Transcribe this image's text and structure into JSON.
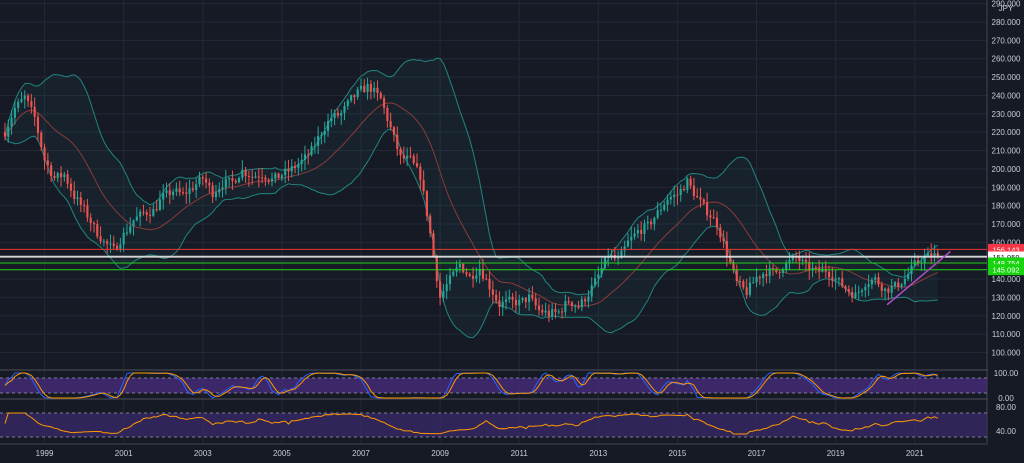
{
  "chart_data": [
    {
      "type": "candlestick",
      "currency_label": "JPY",
      "ylim": [
        91,
        292
      ],
      "y_ticks": [
        "290.000",
        "280.000",
        "270.000",
        "260.000",
        "250.000",
        "240.000",
        "230.000",
        "220.000",
        "210.000",
        "200.000",
        "190.000",
        "180.000",
        "170.000",
        "160.000",
        "150.000",
        "140.000",
        "130.000",
        "120.000",
        "110.000",
        "100.000"
      ],
      "x_labels": [
        "1999",
        "2001",
        "2003",
        "2005",
        "2007",
        "2009",
        "2011",
        "2013",
        "2015",
        "2017",
        "2019",
        "2021"
      ],
      "x_label_years": [
        1999,
        2001,
        2003,
        2005,
        2007,
        2009,
        2011,
        2013,
        2015,
        2017,
        2019,
        2021
      ],
      "xlim": [
        1998.0,
        2022.7
      ],
      "anchors": [
        [
          1998.0,
          220
        ],
        [
          1998.25,
          233
        ],
        [
          1998.5,
          239
        ],
        [
          1998.75,
          228
        ],
        [
          1999.0,
          205
        ],
        [
          1999.25,
          195
        ],
        [
          1999.5,
          197
        ],
        [
          1999.75,
          185
        ],
        [
          2000.0,
          178
        ],
        [
          2000.25,
          168
        ],
        [
          2000.5,
          160
        ],
        [
          2000.75,
          156
        ],
        [
          2001.0,
          164
        ],
        [
          2001.25,
          172
        ],
        [
          2001.5,
          176
        ],
        [
          2001.75,
          177
        ],
        [
          2002.0,
          185
        ],
        [
          2002.25,
          188
        ],
        [
          2002.5,
          186
        ],
        [
          2002.75,
          190
        ],
        [
          2003.0,
          195
        ],
        [
          2003.25,
          187
        ],
        [
          2003.5,
          192
        ],
        [
          2003.75,
          193
        ],
        [
          2004.0,
          199
        ],
        [
          2004.25,
          196
        ],
        [
          2004.5,
          197
        ],
        [
          2004.75,
          194
        ],
        [
          2005.0,
          197
        ],
        [
          2005.25,
          200
        ],
        [
          2005.5,
          204
        ],
        [
          2005.75,
          210
        ],
        [
          2006.0,
          220
        ],
        [
          2006.25,
          228
        ],
        [
          2006.5,
          230
        ],
        [
          2006.75,
          238
        ],
        [
          2007.0,
          243
        ],
        [
          2007.2,
          245
        ],
        [
          2007.5,
          238
        ],
        [
          2007.75,
          222
        ],
        [
          2008.0,
          206
        ],
        [
          2008.25,
          205
        ],
        [
          2008.5,
          196
        ],
        [
          2008.7,
          172
        ],
        [
          2008.85,
          150
        ],
        [
          2009.0,
          130
        ],
        [
          2009.2,
          138
        ],
        [
          2009.5,
          148
        ],
        [
          2009.75,
          141
        ],
        [
          2010.0,
          146
        ],
        [
          2010.25,
          136
        ],
        [
          2010.5,
          126
        ],
        [
          2010.75,
          128
        ],
        [
          2011.0,
          127
        ],
        [
          2011.25,
          130
        ],
        [
          2011.5,
          123
        ],
        [
          2011.75,
          121
        ],
        [
          2012.0,
          122
        ],
        [
          2012.25,
          128
        ],
        [
          2012.5,
          125
        ],
        [
          2012.75,
          132
        ],
        [
          2013.0,
          142
        ],
        [
          2013.25,
          153
        ],
        [
          2013.5,
          150
        ],
        [
          2013.75,
          160
        ],
        [
          2014.0,
          166
        ],
        [
          2014.25,
          169
        ],
        [
          2014.5,
          176
        ],
        [
          2014.75,
          184
        ],
        [
          2015.0,
          186
        ],
        [
          2015.25,
          193
        ],
        [
          2015.5,
          184
        ],
        [
          2015.75,
          177
        ],
        [
          2016.0,
          170
        ],
        [
          2016.25,
          154
        ],
        [
          2016.5,
          138
        ],
        [
          2016.75,
          133
        ],
        [
          2017.0,
          141
        ],
        [
          2017.25,
          144
        ],
        [
          2017.5,
          144
        ],
        [
          2017.75,
          148
        ],
        [
          2018.0,
          152
        ],
        [
          2018.25,
          147
        ],
        [
          2018.5,
          144
        ],
        [
          2018.75,
          145
        ],
        [
          2019.0,
          140
        ],
        [
          2019.25,
          135
        ],
        [
          2019.5,
          131
        ],
        [
          2019.75,
          138
        ],
        [
          2020.0,
          140
        ],
        [
          2020.25,
          134
        ],
        [
          2020.5,
          136
        ],
        [
          2020.75,
          140
        ],
        [
          2021.0,
          148
        ],
        [
          2021.25,
          152
        ],
        [
          2021.5,
          153
        ],
        [
          2021.65,
          152.44
        ]
      ],
      "hlines": [
        {
          "value": 156.143,
          "color": "#e53935"
        },
        {
          "value": 152.44,
          "color": "#e0e0e0"
        },
        {
          "value": 151.959,
          "color": "#e0e0e0"
        },
        {
          "value": 148.754,
          "color": "#26d11b"
        },
        {
          "value": 145.092,
          "color": "#26d11b"
        }
      ],
      "price_tags": [
        {
          "value": 156.143,
          "text": "156.143",
          "color": "#f23645"
        },
        {
          "value": 152.44,
          "text": "152.440",
          "color": "#f7525f"
        },
        {
          "value": 151.959,
          "text": "151.959",
          "color": "#ffffff"
        },
        {
          "value": 148.754,
          "text": "148.754",
          "color": "#17d40e"
        },
        {
          "value": 145.092,
          "text": "145.092",
          "color": "#17d40e"
        }
      ],
      "countdown_label": "16d 7h",
      "current_price": 152.44,
      "trendline": {
        "x1": 2020.3,
        "y1": 126,
        "x2": 2021.9,
        "y2": 155,
        "color": "#b04cc9"
      },
      "up_color": "#26a69a",
      "down_color": "#ef5350",
      "bollinger_color": "#20867f",
      "ma_color": "#8c3a3a"
    },
    {
      "type": "line",
      "name": "stochastic-rsi",
      "ylim": [
        0,
        100
      ],
      "y_ticks": [
        "100.00",
        "0.00"
      ],
      "band": [
        20,
        80
      ],
      "series_colors": [
        "#2962ff",
        "#ff9800"
      ],
      "band_color": "#4a2d7f"
    },
    {
      "type": "line",
      "name": "rsi",
      "ylim": [
        20,
        90
      ],
      "y_ticks": [
        "80.00",
        "40.00"
      ],
      "band": [
        30,
        70
      ],
      "series_colors": [
        "#ff9800"
      ],
      "band_color": "#3a2a6a"
    }
  ]
}
